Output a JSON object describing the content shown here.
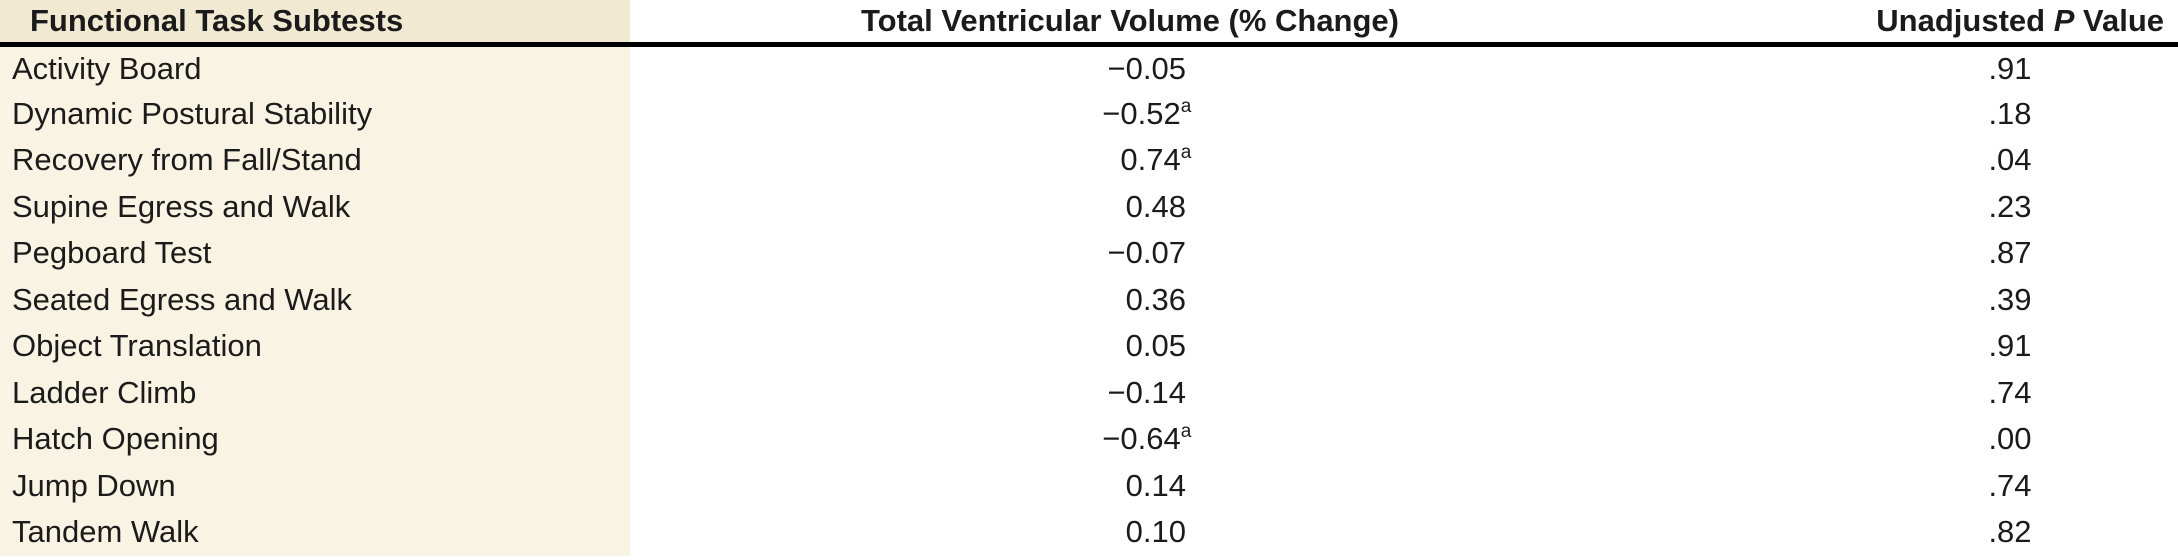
{
  "table": {
    "colors": {
      "header_col1_bg": "#f1e9d1",
      "body_col1_bg": "#f8f3e3",
      "rule": "#000000",
      "text": "#1b1b1b",
      "page_bg": "#ffffff"
    },
    "header": {
      "col1": "Functional Task Subtests",
      "col2": "Total Ventricular Volume (% Change)",
      "col3_part1": "Unadjusted ",
      "col3_italic": "P",
      "col3_part2": " Value"
    },
    "rows": [
      {
        "task": "Activity Board",
        "volume": "−0.05",
        "footnote": "",
        "p_value": ".91"
      },
      {
        "task": "Dynamic Postural Stability",
        "volume": "−0.52",
        "footnote": "a",
        "p_value": ".18"
      },
      {
        "task": "Recovery from Fall/Stand",
        "volume": "0.74",
        "footnote": "a",
        "p_value": ".04"
      },
      {
        "task": "Supine Egress and Walk",
        "volume": "0.48",
        "footnote": "",
        "p_value": ".23"
      },
      {
        "task": "Pegboard Test",
        "volume": "−0.07",
        "footnote": "",
        "p_value": ".87"
      },
      {
        "task": "Seated Egress and Walk",
        "volume": "0.36",
        "footnote": "",
        "p_value": ".39"
      },
      {
        "task": "Object Translation",
        "volume": "0.05",
        "footnote": "",
        "p_value": ".91"
      },
      {
        "task": "Ladder Climb",
        "volume": "−0.14",
        "footnote": "",
        "p_value": ".74"
      },
      {
        "task": "Hatch Opening",
        "volume": "−0.64",
        "footnote": "a",
        "p_value": ".00"
      },
      {
        "task": "Jump Down",
        "volume": "0.14",
        "footnote": "",
        "p_value": ".74"
      },
      {
        "task": "Tandem Walk",
        "volume": "0.10",
        "footnote": "",
        "p_value": ".82"
      }
    ]
  }
}
